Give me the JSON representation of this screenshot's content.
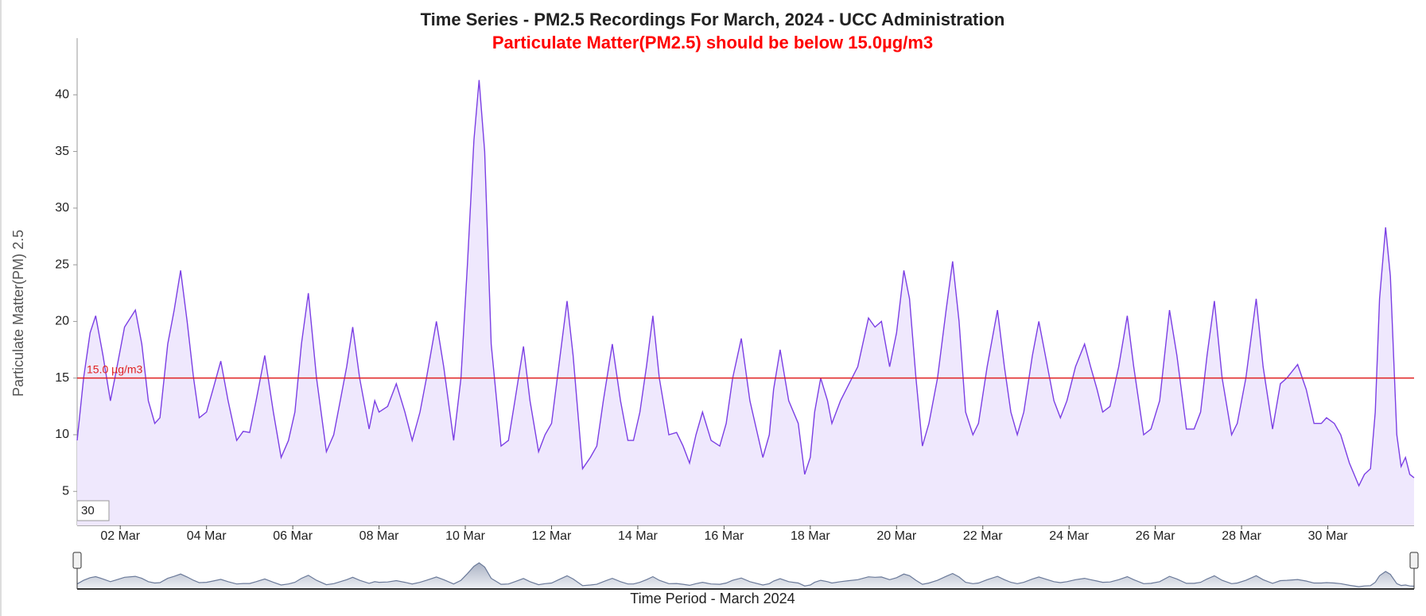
{
  "chart_data": {
    "type": "area",
    "title": "Time Series - PM2.5 Recordings For March, 2024 - UCC Administration",
    "subtitle": "Particulate Matter(PM2.5) should be below 15.0µg/m3",
    "x_label": "Time Period - March 2024",
    "y_label": "Particulate Matter(PM) 2.5",
    "zoom_input": "30",
    "color": "#7b3fe4",
    "fill_color": "#efe8fd",
    "threshold": {
      "value": 15,
      "label": "15.0 µg/m3",
      "color": "#e02020"
    },
    "xlim": [
      1,
      32
    ],
    "xticks": [
      {
        "value": 2,
        "label": "02 Mar"
      },
      {
        "value": 4,
        "label": "04 Mar"
      },
      {
        "value": 6,
        "label": "06 Mar"
      },
      {
        "value": 8,
        "label": "08 Mar"
      },
      {
        "value": 10,
        "label": "10 Mar"
      },
      {
        "value": 12,
        "label": "12 Mar"
      },
      {
        "value": 14,
        "label": "14 Mar"
      },
      {
        "value": 16,
        "label": "16 Mar"
      },
      {
        "value": 18,
        "label": "18 Mar"
      },
      {
        "value": 20,
        "label": "20 Mar"
      },
      {
        "value": 22,
        "label": "22 Mar"
      },
      {
        "value": 24,
        "label": "24 Mar"
      },
      {
        "value": 26,
        "label": "26 Mar"
      },
      {
        "value": 28,
        "label": "28 Mar"
      },
      {
        "value": 30,
        "label": "30 Mar"
      }
    ],
    "ylim": [
      2,
      45
    ],
    "yticks": [
      5,
      10,
      15,
      20,
      25,
      30,
      35,
      40
    ],
    "x": [
      1.0,
      1.15,
      1.3,
      1.43,
      1.6,
      1.77,
      1.9,
      2.1,
      2.35,
      2.5,
      2.65,
      2.8,
      2.92,
      3.1,
      3.25,
      3.4,
      3.55,
      3.7,
      3.83,
      4.0,
      4.15,
      4.33,
      4.5,
      4.7,
      4.85,
      5.0,
      5.15,
      5.35,
      5.55,
      5.73,
      5.9,
      6.05,
      6.2,
      6.36,
      6.55,
      6.78,
      6.95,
      7.1,
      7.25,
      7.39,
      7.55,
      7.77,
      7.9,
      8.0,
      8.2,
      8.4,
      8.6,
      8.77,
      8.95,
      9.1,
      9.33,
      9.5,
      9.73,
      9.9,
      10.05,
      10.2,
      10.32,
      10.45,
      10.6,
      10.83,
      11.0,
      11.15,
      11.35,
      11.5,
      11.7,
      11.85,
      12.0,
      12.2,
      12.36,
      12.5,
      12.72,
      12.9,
      13.05,
      13.2,
      13.41,
      13.6,
      13.77,
      13.9,
      14.05,
      14.2,
      14.35,
      14.5,
      14.72,
      14.9,
      15.05,
      15.2,
      15.35,
      15.5,
      15.7,
      15.9,
      16.05,
      16.2,
      16.4,
      16.6,
      16.9,
      17.05,
      17.15,
      17.3,
      17.5,
      17.72,
      17.87,
      18.0,
      18.1,
      18.24,
      18.4,
      18.5,
      18.7,
      18.9,
      19.1,
      19.35,
      19.5,
      19.65,
      19.84,
      20.0,
      20.17,
      20.3,
      20.45,
      20.6,
      20.75,
      20.95,
      21.15,
      21.3,
      21.45,
      21.6,
      21.77,
      21.9,
      22.1,
      22.34,
      22.5,
      22.65,
      22.8,
      22.95,
      23.15,
      23.3,
      23.45,
      23.65,
      23.8,
      23.95,
      24.15,
      24.36,
      24.5,
      24.65,
      24.78,
      24.95,
      25.15,
      25.35,
      25.5,
      25.73,
      25.9,
      26.1,
      26.33,
      26.5,
      26.72,
      26.9,
      27.05,
      27.2,
      27.37,
      27.55,
      27.77,
      27.9,
      28.1,
      28.34,
      28.5,
      28.72,
      28.9,
      29.05,
      29.3,
      29.5,
      29.68,
      29.85,
      29.97,
      30.15,
      30.3,
      30.5,
      30.72,
      30.85,
      30.99,
      31.1,
      31.2,
      31.34,
      31.45,
      31.6,
      31.7,
      31.8,
      31.9,
      32.0
    ],
    "values": [
      9.5,
      15,
      19,
      20.5,
      17,
      13,
      15.5,
      19.5,
      21,
      18,
      13,
      11,
      11.5,
      18,
      21,
      24.5,
      20,
      15,
      11.5,
      12,
      14,
      16.5,
      13,
      9.5,
      10.3,
      10.2,
      13,
      17,
      12,
      8,
      9.5,
      12,
      18,
      22.5,
      15,
      8.5,
      10,
      13,
      16,
      19.5,
      15,
      10.5,
      13,
      12,
      12.5,
      14.5,
      12,
      9.5,
      12,
      15,
      20,
      16,
      9.5,
      15,
      25,
      36,
      41.3,
      35,
      18,
      9,
      9.5,
      13,
      17.8,
      13,
      8.5,
      10,
      11,
      17,
      21.8,
      17,
      7,
      8,
      9,
      13,
      18,
      13,
      9.5,
      9.5,
      12,
      16,
      20.5,
      15,
      10,
      10.2,
      9,
      7.5,
      10,
      12,
      9.5,
      9,
      11,
      15,
      18.5,
      13,
      8,
      10,
      14,
      17.5,
      13,
      11,
      6.5,
      8,
      12,
      15,
      13,
      11,
      13,
      14.5,
      16,
      20.3,
      19.5,
      20,
      16,
      19,
      24.5,
      22,
      15,
      9,
      11,
      15,
      21,
      25.3,
      20,
      12,
      10,
      11,
      16,
      21,
      16,
      12,
      10,
      12,
      17,
      20,
      17,
      13,
      11.5,
      13,
      16,
      18,
      16,
      14,
      12,
      12.5,
      16,
      20.5,
      16,
      10,
      10.5,
      13,
      21,
      17,
      10.5,
      10.5,
      12,
      17,
      21.8,
      15,
      10,
      11,
      15,
      22,
      16,
      10.5,
      14.5,
      15,
      16.2,
      14,
      11,
      11,
      11.5,
      11,
      10,
      7.5,
      5.5,
      6.5,
      7,
      12,
      22,
      28.3,
      24,
      10,
      7.2,
      8,
      6.5,
      6.2
    ]
  }
}
